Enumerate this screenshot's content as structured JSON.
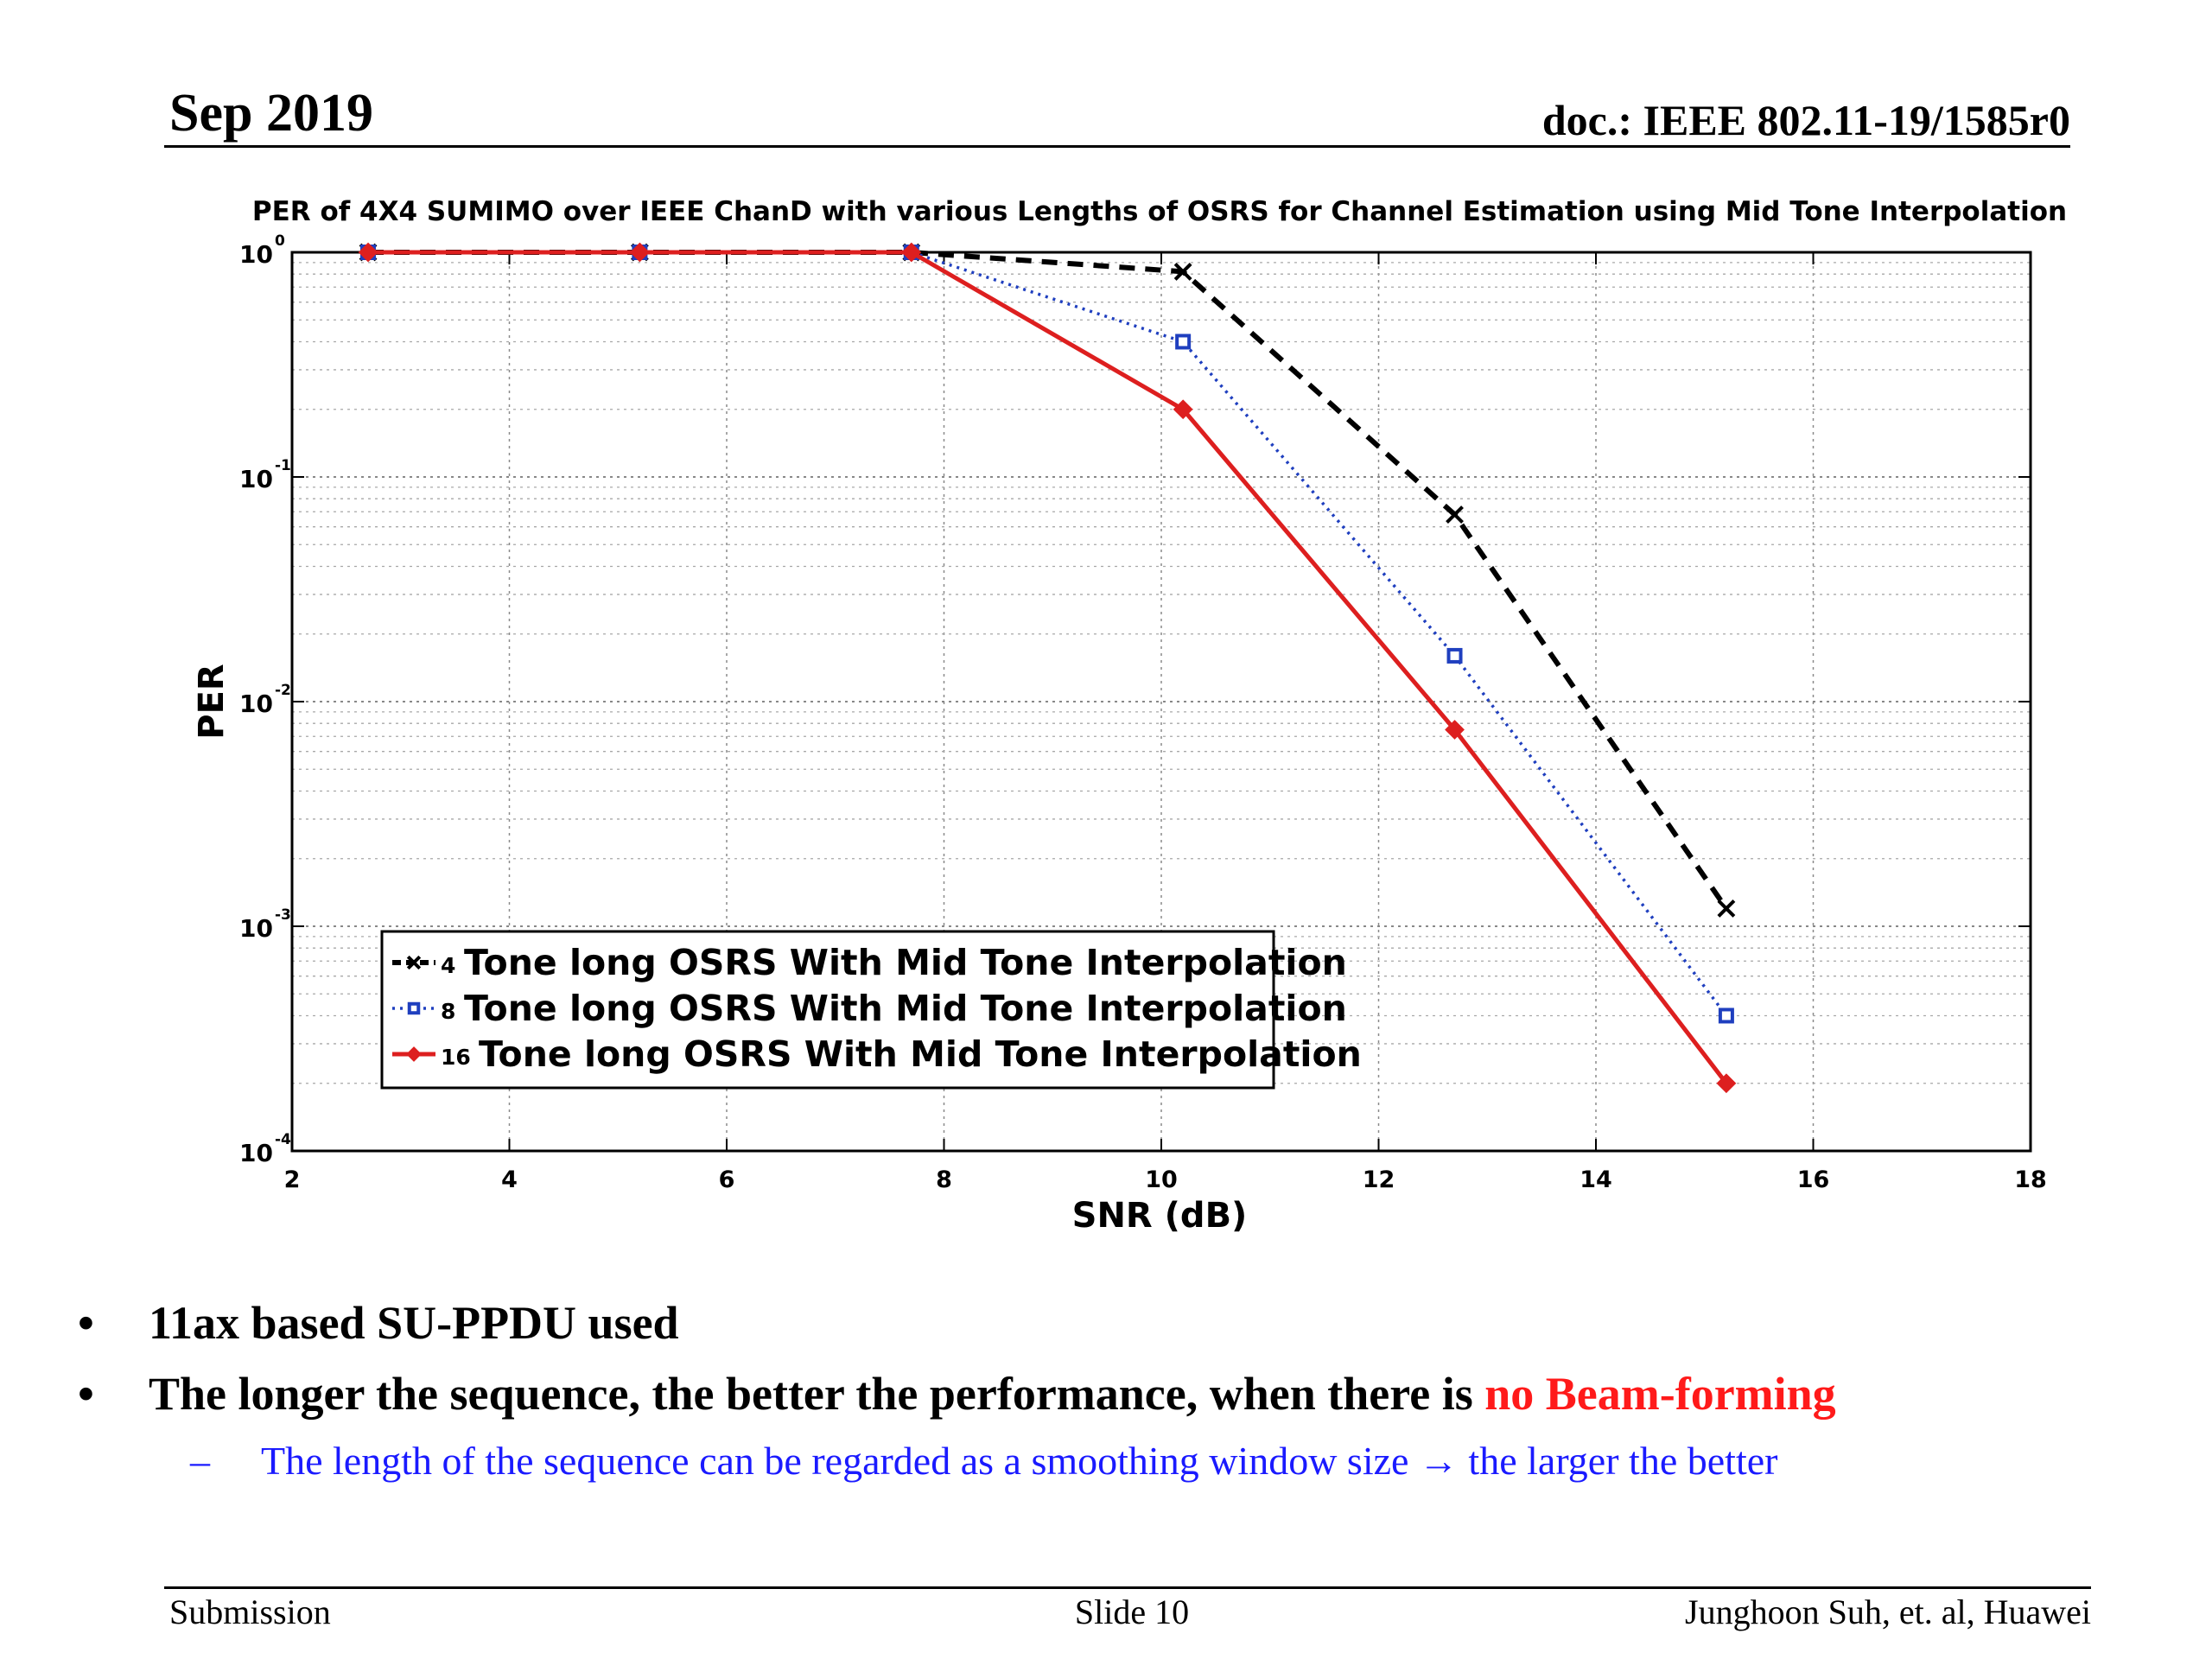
{
  "slide": {
    "date": "Sep 2019",
    "doc": "doc.: IEEE 802.11-19/1585r0"
  },
  "chart_data": {
    "type": "line",
    "title": "PER of 4X4 SUMIMO over IEEE ChanD with various Lengths of OSRS for Channel Estimation using Mid Tone Interpolation",
    "xlabel": "SNR (dB)",
    "ylabel": "PER",
    "xlim": [
      2,
      18
    ],
    "ylim": [
      0.0001,
      1
    ],
    "yscale": "log",
    "grid": true,
    "x_ticks": [
      "2",
      "4",
      "6",
      "8",
      "10",
      "12",
      "14",
      "16",
      "18"
    ],
    "y_ticks": [
      {
        "base": "10",
        "exp": "0"
      },
      {
        "base": "10",
        "exp": "-1"
      },
      {
        "base": "10",
        "exp": "-2"
      },
      {
        "base": "10",
        "exp": "-3"
      },
      {
        "base": "10",
        "exp": "-4"
      }
    ],
    "legend_placement": "bottom-left",
    "series": [
      {
        "num": "4",
        "name": "Tone long OSRS With Mid Tone Interpolation",
        "color": "#000000",
        "marker": "x",
        "style": "dashed",
        "x": [
          2.7,
          5.2,
          7.7,
          10.2,
          12.7,
          15.2
        ],
        "y": [
          1.0,
          1.0,
          1.0,
          0.82,
          0.068,
          0.0012
        ]
      },
      {
        "num": "8",
        "name": "Tone long OSRS With Mid Tone Interpolation",
        "color": "#1f3fbf",
        "marker": "square",
        "style": "dotted",
        "x": [
          2.7,
          5.2,
          7.7,
          10.2,
          12.7,
          15.2
        ],
        "y": [
          1.0,
          1.0,
          1.0,
          0.4,
          0.016,
          0.0004
        ]
      },
      {
        "num": "16",
        "name": "Tone long OSRS With Mid Tone Interpolation",
        "color": "#dd1f1f",
        "marker": "diamond",
        "style": "solid",
        "x": [
          2.7,
          5.2,
          7.7,
          10.2,
          12.7,
          15.2
        ],
        "y": [
          1.0,
          1.0,
          1.0,
          0.2,
          0.0075,
          0.0002
        ]
      }
    ]
  },
  "bullets": {
    "b1": "11ax based SU-PPDU used",
    "b2_main": "The longer the sequence, the better the performance, when there is ",
    "b2_red": "no Beam-forming",
    "sub": "The length of the sequence can be regarded as a smoothing window size → the larger the better",
    "bullet_glyph": "•",
    "dash_glyph": "–"
  },
  "footer": {
    "left": "Submission",
    "center": "Slide 10",
    "right": "Junghoon Suh, et. al, Huawei"
  }
}
